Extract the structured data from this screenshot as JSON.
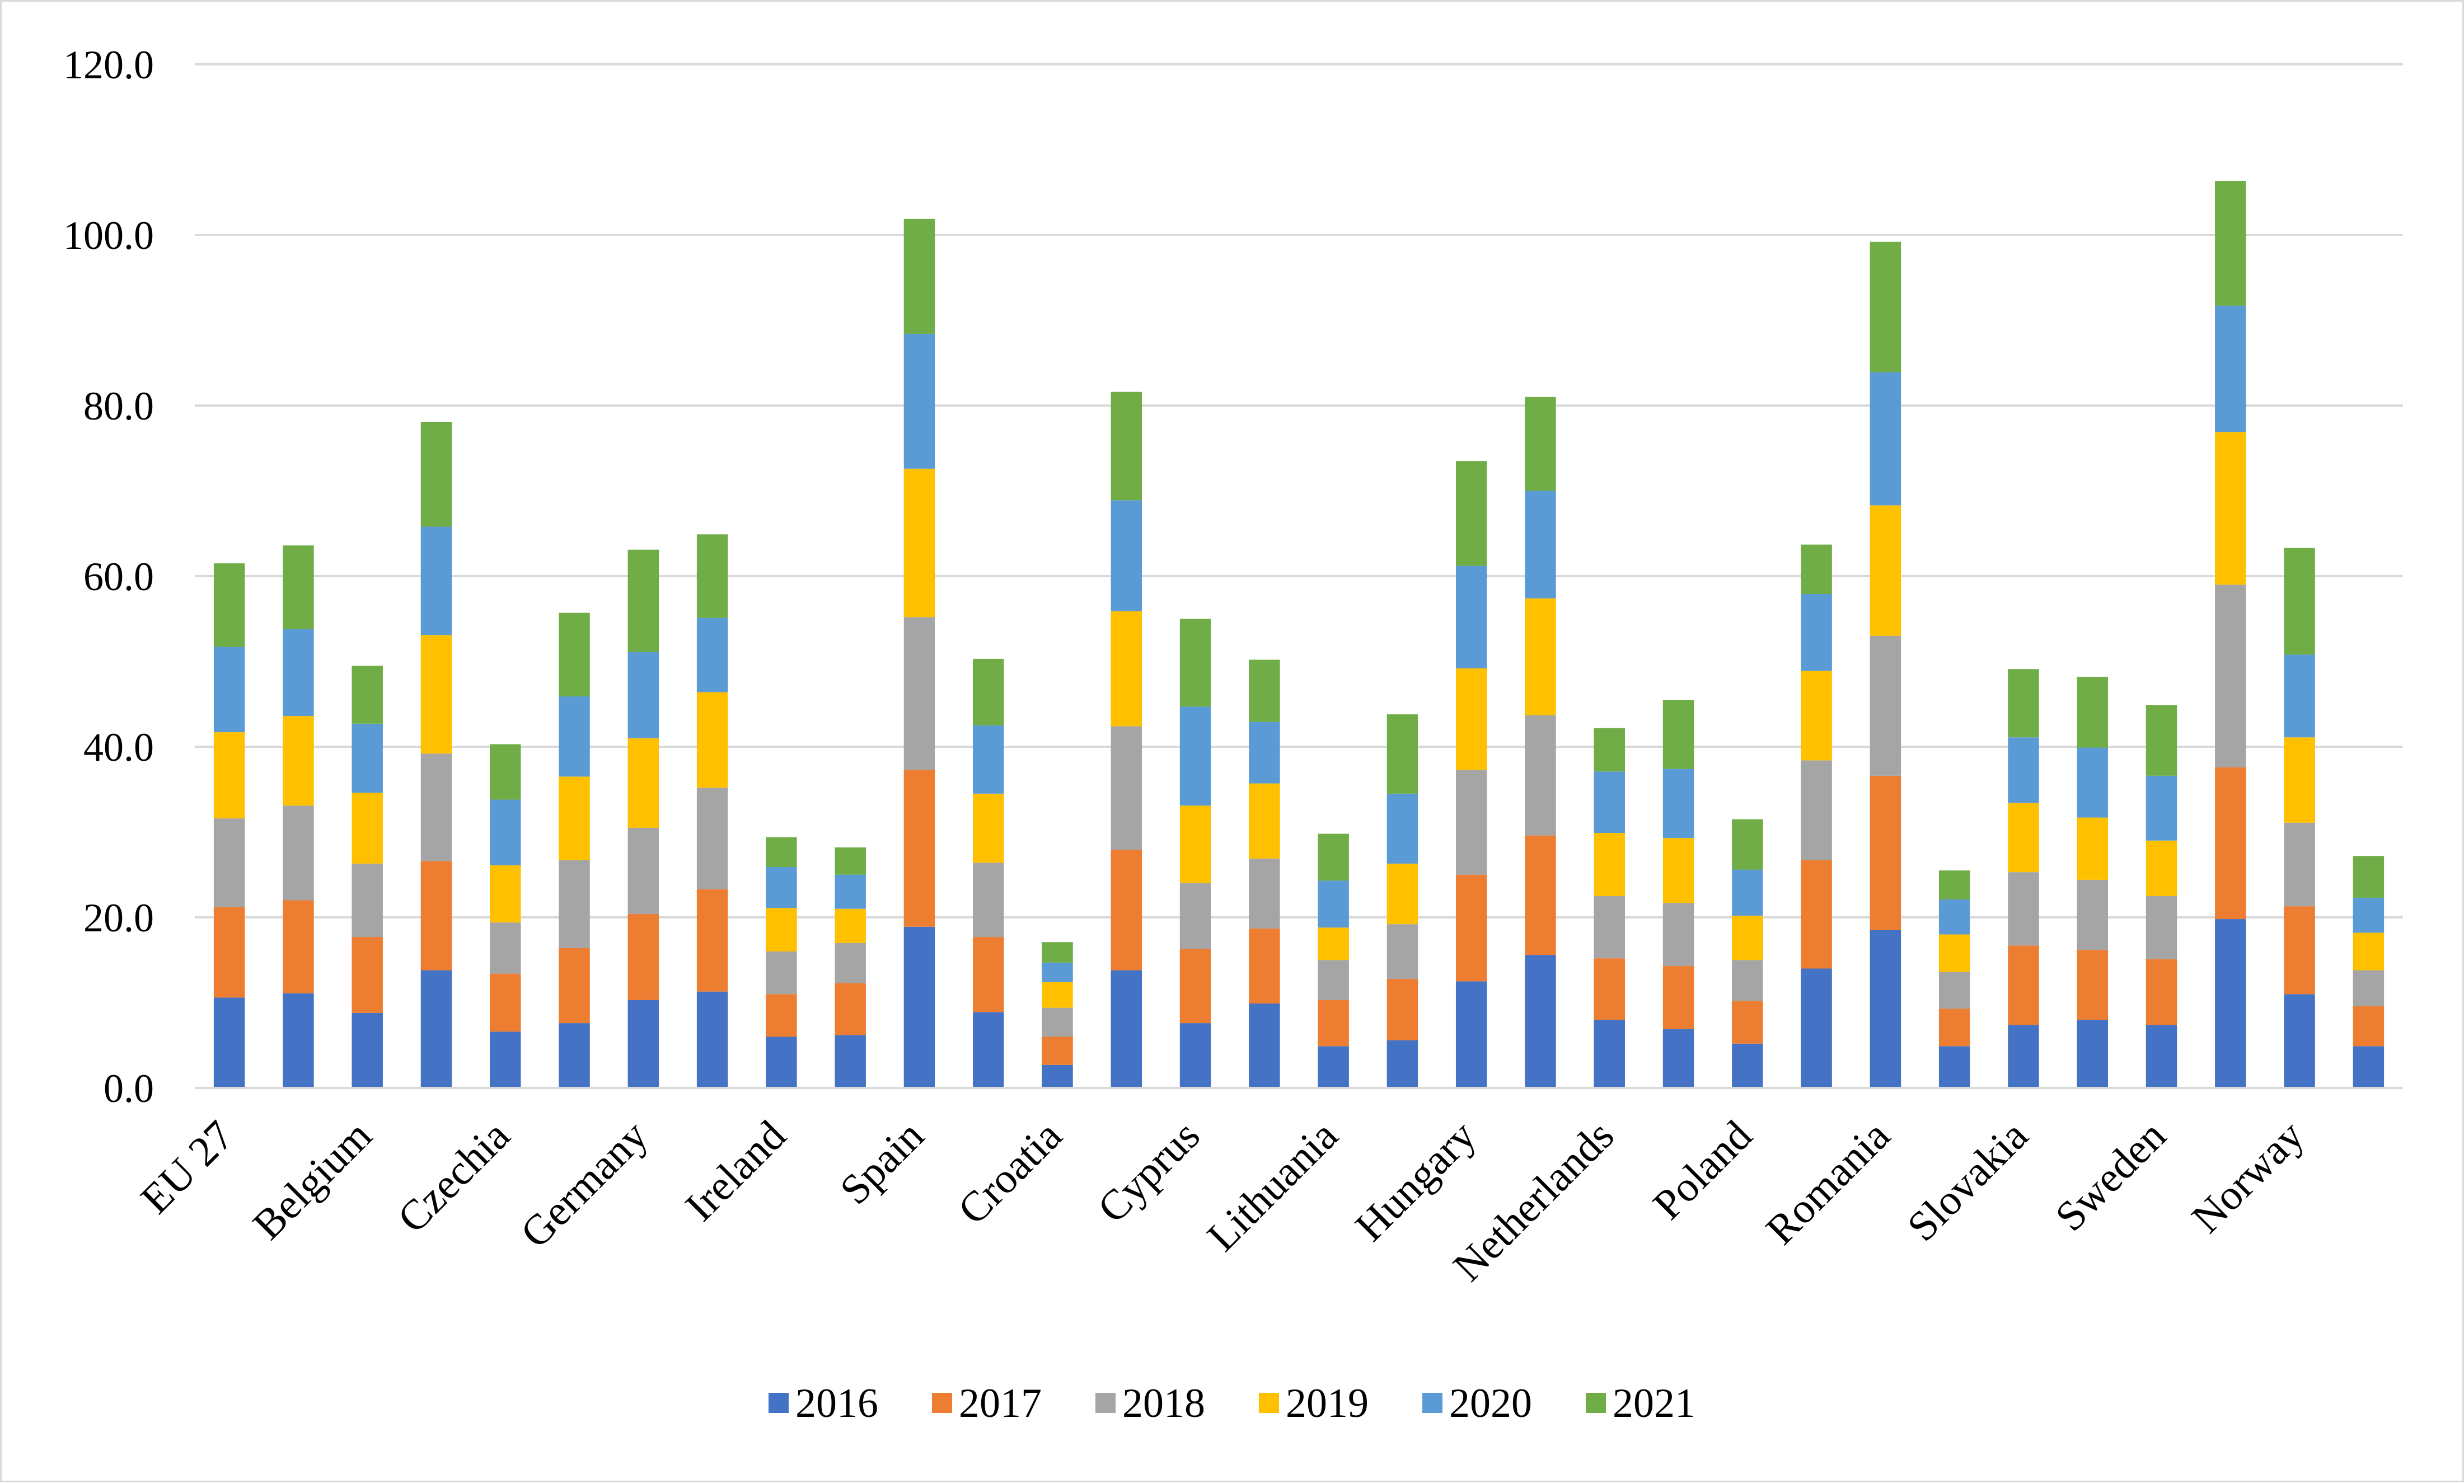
{
  "chart_data": {
    "type": "bar",
    "stacked": true,
    "title": "",
    "xlabel": "",
    "ylabel": "",
    "ylim": [
      0,
      120
    ],
    "yticks": [
      0,
      20,
      40,
      60,
      80,
      100,
      120
    ],
    "ytick_labels": [
      "0.0",
      "20.0",
      "40.0",
      "60.0",
      "80.0",
      "100.0",
      "120.0"
    ],
    "grid": "horizontal",
    "legend_position": "bottom",
    "categories": [
      "EU 27",
      "",
      "Belgium",
      "",
      "Czechia",
      "",
      "Germany",
      "",
      "Ireland",
      "",
      "Spain",
      "",
      "Croatia",
      "",
      "Cyprus",
      "",
      "Lithuania",
      "",
      "Hungary",
      "",
      "Netherlands",
      "",
      "Poland",
      "",
      "Romania",
      "",
      "Slovakia",
      "",
      "Sweden",
      "",
      "Norway",
      ""
    ],
    "series": [
      {
        "name": "2016",
        "color": "#4472C4",
        "values": [
          10.6,
          11.1,
          8.8,
          13.8,
          6.6,
          7.6,
          10.3,
          11.3,
          6.0,
          6.2,
          18.9,
          8.9,
          2.7,
          13.8,
          7.6,
          9.9,
          4.9,
          5.6,
          12.5,
          15.6,
          8.0,
          6.9,
          5.2,
          14.0,
          18.5,
          4.9,
          7.4,
          8.0,
          7.4,
          19.8,
          11.0,
          4.9
        ]
      },
      {
        "name": "2017",
        "color": "#ED7D31",
        "values": [
          10.6,
          10.9,
          8.9,
          12.8,
          6.8,
          8.8,
          10.1,
          12.0,
          5.0,
          6.1,
          18.4,
          8.8,
          3.3,
          14.1,
          8.7,
          8.8,
          5.4,
          7.2,
          12.5,
          14.0,
          7.2,
          7.4,
          5.0,
          12.7,
          18.1,
          4.4,
          9.3,
          8.2,
          7.7,
          17.8,
          10.3,
          4.7
        ]
      },
      {
        "name": "2018",
        "color": "#A5A5A5",
        "values": [
          10.4,
          11.1,
          8.6,
          12.6,
          6.0,
          10.3,
          10.1,
          11.9,
          5.0,
          4.7,
          17.9,
          8.7,
          3.4,
          14.5,
          7.7,
          8.2,
          4.7,
          6.4,
          12.3,
          14.1,
          7.3,
          7.4,
          4.8,
          11.7,
          16.4,
          4.3,
          8.6,
          8.2,
          7.4,
          21.4,
          9.8,
          4.2
        ]
      },
      {
        "name": "2019",
        "color": "#FFC000",
        "values": [
          10.1,
          10.5,
          8.3,
          13.9,
          6.7,
          9.8,
          10.5,
          11.2,
          5.1,
          4.0,
          17.4,
          8.1,
          3.0,
          13.5,
          9.1,
          8.8,
          3.8,
          7.1,
          11.9,
          13.7,
          7.4,
          7.6,
          5.2,
          10.5,
          15.3,
          4.4,
          8.1,
          7.3,
          6.5,
          17.9,
          10.0,
          4.4
        ]
      },
      {
        "name": "2020",
        "color": "#5B9BD5",
        "values": [
          10.0,
          10.2,
          8.1,
          12.7,
          7.7,
          9.4,
          10.1,
          8.7,
          4.8,
          4.0,
          15.8,
          8.0,
          2.3,
          13.0,
          11.6,
          7.2,
          5.5,
          8.2,
          12.0,
          12.6,
          7.2,
          8.1,
          5.4,
          9.0,
          15.6,
          4.1,
          7.7,
          8.2,
          7.6,
          14.8,
          9.7,
          4.1
        ]
      },
      {
        "name": "2021",
        "color": "#70AD47",
        "values": [
          9.8,
          9.8,
          6.8,
          12.3,
          6.5,
          9.8,
          12.0,
          9.8,
          3.5,
          3.2,
          13.5,
          7.8,
          2.4,
          12.7,
          10.3,
          7.3,
          5.5,
          9.3,
          12.3,
          11.0,
          5.1,
          8.1,
          5.9,
          5.8,
          15.3,
          3.4,
          8.0,
          8.3,
          8.3,
          14.6,
          12.5,
          4.9
        ]
      }
    ]
  }
}
